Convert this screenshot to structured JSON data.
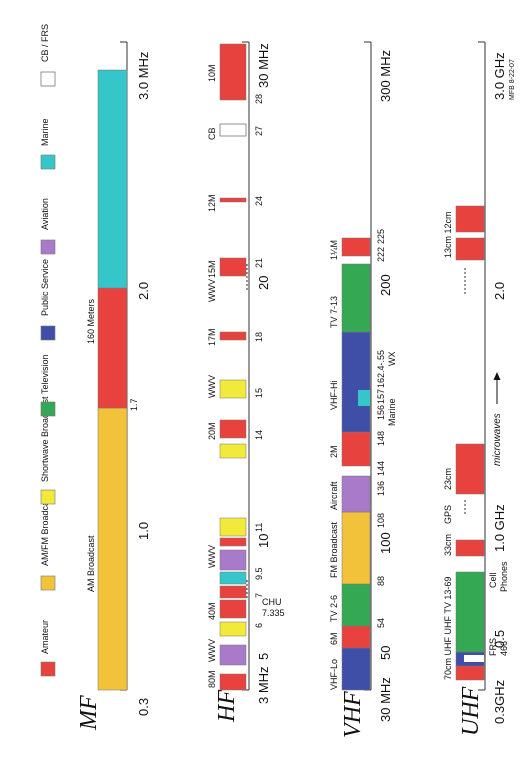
{
  "colors": {
    "amateur": "#e8423f",
    "am_fm": "#f2c23a",
    "shortwave": "#f2ea3a",
    "television": "#34a853",
    "public_service": "#3f4fa8",
    "aviation": "#a97ac9",
    "marine": "#34c6c8",
    "cb_frs": "#ffffff"
  },
  "legend": [
    {
      "label": "Amateur",
      "color_key": "amateur"
    },
    {
      "label": "AM/FM Broadcast",
      "color_key": "am_fm"
    },
    {
      "label": "Shortwave Broadcast",
      "color_key": "shortwave"
    },
    {
      "label": "Television",
      "color_key": "television"
    },
    {
      "label": "Public Service",
      "color_key": "public_service"
    },
    {
      "label": "Aviation",
      "color_key": "aviation"
    },
    {
      "label": "Marine",
      "color_key": "marine"
    },
    {
      "label": "CB / FRS",
      "color_key": "cb_frs"
    }
  ],
  "bands": [
    {
      "name": "MF",
      "start": "0.3",
      "end": "3.0 MHz",
      "ticks": [
        "1.0",
        "2.0"
      ]
    },
    {
      "name": "HF",
      "start": "3 MHz",
      "end": "30 MHz",
      "ticks": [
        "5",
        "10",
        "20"
      ]
    },
    {
      "name": "VHF",
      "start": "30 MHz",
      "end": "300 MHz",
      "ticks": [
        "50",
        "100",
        "200"
      ]
    },
    {
      "name": "UHF",
      "start": "0.3GHz",
      "end": "3.0 GHz",
      "ticks": [
        "0.5",
        "1.0 GHz",
        "2.0"
      ]
    }
  ],
  "mf_labels": {
    "am_broadcast": "AM Broadcast",
    "meters_160": "160 Meters",
    "f_1_7": "1.7"
  },
  "hf_labels": {
    "m80": "80M",
    "wwv": "WWV",
    "m40": "40M",
    "m20": "20M",
    "m17": "17M",
    "m15": "15M",
    "m12": "12M",
    "cb": "CB",
    "m10": "10M",
    "f6": "6",
    "f7": "7",
    "f9_5": "9.5",
    "f11": "11",
    "f14": "14",
    "f15": "15",
    "f18": "18",
    "f21": "21",
    "f24": "24",
    "f27": "27",
    "f28": "28",
    "chu": "CHU",
    "chu_freq": "7.335"
  },
  "vhf_labels": {
    "vhf_lo": "VHF-Lo",
    "m6": "6M",
    "tv_2_6": "TV 2-6",
    "fm_broadcast": "FM Broadcast",
    "aircraft": "Aircraft",
    "m2": "2M",
    "vhf_hi": "VHF-Hi",
    "tv_7_13": "TV 7-13",
    "m1_25": "1¼M",
    "f54": "54",
    "f88": "88",
    "f108": "108",
    "f136": "136",
    "f144": "144",
    "f148": "148",
    "f156": "156",
    "f157": "157",
    "f162": "162.4-.55",
    "f222": "222",
    "f225": "225",
    "marine": "Marine",
    "wx": "WX"
  },
  "uhf_labels": {
    "title_line": "70cm UHF UHF TV 13-69",
    "frs": "FRS",
    "frs_freq": "466",
    "cell": "Cell",
    "phones": "Phones",
    "cm33": "33cm",
    "gps": "GPS",
    "cm23": "23cm",
    "microwaves": "microwaves",
    "cm13_12": "13cm 12cm"
  },
  "credit": "MFB 8-22-07"
}
